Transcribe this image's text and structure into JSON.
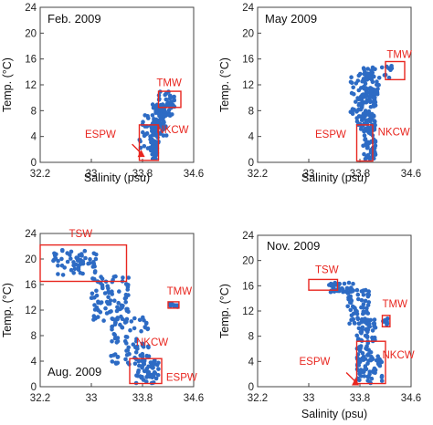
{
  "chart_data": [
    {
      "type": "scatter",
      "title": "Feb. 2009",
      "xlabel": "Salinity (psu)",
      "ylabel": "Temp. (°C)",
      "xlim": [
        32.2,
        34.6
      ],
      "ylim": [
        0,
        24
      ],
      "xticks": [
        "32.2",
        "33",
        "33.8",
        "34.6"
      ],
      "yticks": [
        "0",
        "4",
        "8",
        "12",
        "16",
        "20",
        "24"
      ],
      "grid": false,
      "marker_color": "#2d6bc4",
      "annotation_color": "#e8261f",
      "clusters": [
        {
          "sal": [
            33.92,
            34.05
          ],
          "temp": [
            0.5,
            6
          ],
          "n": 70
        },
        {
          "sal": [
            33.95,
            34.18
          ],
          "temp": [
            4,
            9
          ],
          "n": 80
        },
        {
          "sal": [
            34.05,
            34.3
          ],
          "temp": [
            7,
            11
          ],
          "n": 40
        },
        {
          "sal": [
            33.75,
            34.0
          ],
          "temp": [
            2,
            7.5
          ],
          "n": 20
        }
      ],
      "regions": [
        {
          "name": "TMW",
          "sal": [
            34.05,
            34.4
          ],
          "temp": [
            8.5,
            11
          ]
        },
        {
          "name": "ESPW",
          "sal": [
            33.75,
            34.05
          ],
          "temp": [
            0.3,
            5.8
          ]
        },
        {
          "name": "NKCW",
          "sal": null,
          "temp": null
        }
      ],
      "labels": [
        {
          "text": "TMW",
          "sal": 34.02,
          "temp": 11.8
        },
        {
          "text": "ESPW",
          "sal": 32.9,
          "temp": 3.8
        },
        {
          "text": "NKCW",
          "sal": 34.02,
          "temp": 4.5
        }
      ],
      "arrow": {
        "sal": 33.78,
        "temp": 1.4
      }
    },
    {
      "type": "scatter",
      "title": "May 2009",
      "xlabel": "Salinity (psu)",
      "ylabel": "Temp. (°C)",
      "xlim": [
        32.2,
        34.6
      ],
      "ylim": [
        0,
        24
      ],
      "xticks": [
        "32.2",
        "33",
        "33.8",
        "34.6"
      ],
      "yticks": [
        "0",
        "4",
        "8",
        "12",
        "16",
        "20",
        "24"
      ],
      "grid": false,
      "marker_color": "#2d6bc4",
      "annotation_color": "#e8261f",
      "clusters": [
        {
          "sal": [
            33.85,
            34.05
          ],
          "temp": [
            0.5,
            6
          ],
          "n": 60
        },
        {
          "sal": [
            33.75,
            34.05
          ],
          "temp": [
            5,
            11
          ],
          "n": 90
        },
        {
          "sal": [
            33.85,
            34.1
          ],
          "temp": [
            10,
            15
          ],
          "n": 60
        },
        {
          "sal": [
            33.65,
            33.85
          ],
          "temp": [
            7,
            14
          ],
          "n": 25
        },
        {
          "sal": [
            34.1,
            34.3
          ],
          "temp": [
            13,
            15
          ],
          "n": 10
        }
      ],
      "regions": [
        {
          "name": "TMW",
          "sal": [
            34.2,
            34.5
          ],
          "temp": [
            12.8,
            15.6
          ]
        },
        {
          "name": "ESPW",
          "sal": [
            33.75,
            34.0
          ],
          "temp": [
            0.2,
            5.8
          ]
        },
        {
          "name": "NKCW",
          "sal": null,
          "temp": null
        }
      ],
      "labels": [
        {
          "text": "TMW",
          "sal": 34.22,
          "temp": 16.2
        },
        {
          "text": "ESPW",
          "sal": 33.1,
          "temp": 3.8
        },
        {
          "text": "NKCW",
          "sal": 34.08,
          "temp": 4.2
        }
      ],
      "arrow": null
    },
    {
      "type": "scatter",
      "title": "Aug. 2009",
      "xlabel": "",
      "ylabel": "Temp. (°C)",
      "xlim": [
        32.2,
        34.6
      ],
      "ylim": [
        0,
        24
      ],
      "xticks": [
        "32.2",
        "33",
        "33.8",
        "34.6"
      ],
      "yticks": [
        "0",
        "4",
        "8",
        "12",
        "16",
        "20",
        "24"
      ],
      "grid": false,
      "marker_color": "#2d6bc4",
      "annotation_color": "#e8261f",
      "clusters": [
        {
          "sal": [
            32.4,
            33.1
          ],
          "temp": [
            17.5,
            21.5
          ],
          "n": 60
        },
        {
          "sal": [
            33.0,
            33.6
          ],
          "temp": [
            10,
            17.5
          ],
          "n": 90
        },
        {
          "sal": [
            33.3,
            33.9
          ],
          "temp": [
            3.5,
            11
          ],
          "n": 80
        },
        {
          "sal": [
            33.7,
            34.05
          ],
          "temp": [
            0.5,
            4.5
          ],
          "n": 60
        },
        {
          "sal": [
            34.2,
            34.35
          ],
          "temp": [
            12.5,
            13.2
          ],
          "n": 10
        }
      ],
      "regions": [
        {
          "name": "TSW",
          "sal": [
            32.2,
            33.55
          ],
          "temp": [
            16.5,
            22.2
          ]
        },
        {
          "name": "TMW",
          "sal": [
            34.2,
            34.37
          ],
          "temp": [
            12.3,
            13.3
          ]
        },
        {
          "name": "ESPW",
          "sal": [
            33.6,
            34.1
          ],
          "temp": [
            0.5,
            4.4
          ]
        },
        {
          "name": "NKCW",
          "sal": null,
          "temp": null
        }
      ],
      "labels": [
        {
          "text": "TSW",
          "sal": 32.65,
          "temp": 23.4
        },
        {
          "text": "TMW",
          "sal": 34.18,
          "temp": 14.4
        },
        {
          "text": "NKCW",
          "sal": 33.7,
          "temp": 6.4
        },
        {
          "text": "ESPW",
          "sal": 34.17,
          "temp": 0.9
        }
      ],
      "arrow": null
    },
    {
      "type": "scatter",
      "title": "Nov. 2009",
      "xlabel": "Salinity (psu)",
      "ylabel": "Temp. (°C)",
      "xlim": [
        32.2,
        34.6
      ],
      "ylim": [
        0,
        24
      ],
      "xticks": [
        "32.2",
        "33",
        "33.8",
        "34.6"
      ],
      "yticks": [
        "0",
        "4",
        "8",
        "12",
        "16",
        "20",
        "24"
      ],
      "grid": false,
      "marker_color": "#2d6bc4",
      "annotation_color": "#e8261f",
      "clusters": [
        {
          "sal": [
            33.3,
            33.7
          ],
          "temp": [
            15,
            16.5
          ],
          "n": 40
        },
        {
          "sal": [
            33.6,
            33.95
          ],
          "temp": [
            10,
            15.5
          ],
          "n": 60
        },
        {
          "sal": [
            33.75,
            34.05
          ],
          "temp": [
            4,
            11
          ],
          "n": 70
        },
        {
          "sal": [
            33.75,
            34.15
          ],
          "temp": [
            0.5,
            5
          ],
          "n": 60
        },
        {
          "sal": [
            34.15,
            34.25
          ],
          "temp": [
            9.5,
            11
          ],
          "n": 10
        }
      ],
      "regions": [
        {
          "name": "TSW",
          "sal": [
            33.0,
            33.45
          ],
          "temp": [
            15.3,
            17
          ]
        },
        {
          "name": "TMW",
          "sal": [
            34.15,
            34.27
          ],
          "temp": [
            9.5,
            11.3
          ]
        },
        {
          "name": "ESPW",
          "sal": [
            33.75,
            34.2
          ],
          "temp": [
            0.5,
            7.2
          ]
        },
        {
          "name": "NKCW",
          "sal": null,
          "temp": null
        }
      ],
      "labels": [
        {
          "text": "TSW",
          "sal": 33.1,
          "temp": 18
        },
        {
          "text": "TMW",
          "sal": 34.15,
          "temp": 12.6
        },
        {
          "text": "ESPW",
          "sal": 32.85,
          "temp": 3.5
        },
        {
          "text": "NKCW",
          "sal": 34.15,
          "temp": 4.5
        }
      ],
      "arrow": {
        "sal": 33.73,
        "temp": 0.8
      }
    }
  ]
}
